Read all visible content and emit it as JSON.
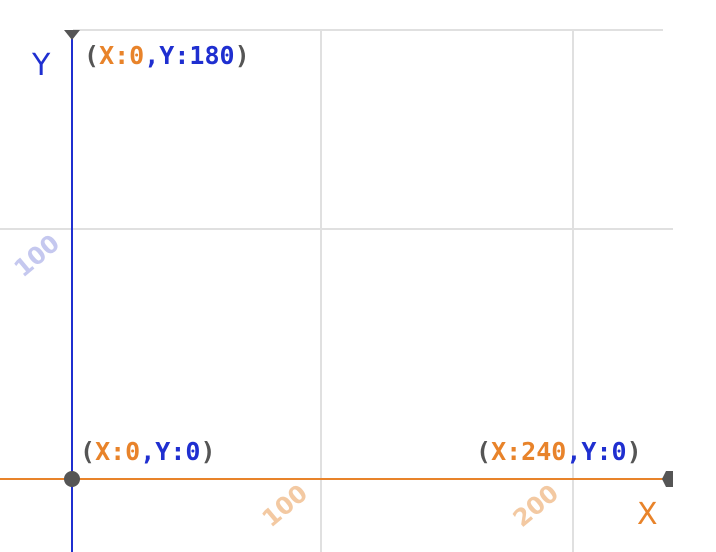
{
  "colors": {
    "x_accent": "#e8832a",
    "y_accent": "#1f2fd0",
    "paren": "#555555",
    "grid": "#e0e0e0",
    "x_tick_text": "#f3c9a2",
    "y_tick_text": "#c5c8ef",
    "marker": "#555555",
    "background": "#ffffff"
  },
  "axes": {
    "x_name": "X",
    "y_name": "Y"
  },
  "ticks": {
    "x": [
      "100",
      "200"
    ],
    "y": [
      "100"
    ]
  },
  "points": [
    {
      "paren_open": "(",
      "x_key": "X:",
      "x_value": "0",
      "sep": ",",
      "y_key": "Y:",
      "y_value": "180",
      "paren_close": ")"
    },
    {
      "paren_open": "(",
      "x_key": "X:",
      "x_value": "0",
      "sep": ",",
      "y_key": "Y:",
      "y_value": "0",
      "paren_close": ")"
    },
    {
      "paren_open": "(",
      "x_key": "X:",
      "x_value": "240",
      "sep": ",",
      "y_key": "Y:",
      "y_value": "0",
      "paren_close": ")"
    }
  ],
  "icons": {
    "origin_marker": "circle-marker-icon",
    "x_arrow": "arrow-right-icon",
    "y_arrow": "arrow-up-icon"
  }
}
